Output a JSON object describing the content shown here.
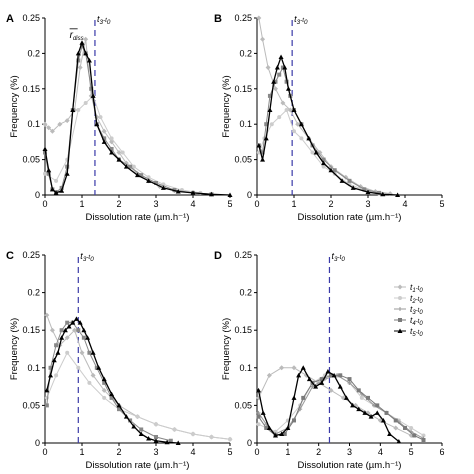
{
  "chart_data": [
    {
      "panel": "A",
      "type": "line",
      "xlabel": "Dissolution rate (µm.h⁻¹)",
      "ylabel": "Frequency (%)",
      "xlim": [
        0,
        5
      ],
      "ylim": [
        0,
        0.25
      ],
      "xticks": [
        0,
        1,
        2,
        3,
        4,
        5
      ],
      "yticks": [
        0,
        0.05,
        0.1,
        0.15,
        0.2,
        0.25
      ],
      "vline": {
        "x": 1.35,
        "label_pre": "t",
        "label_sub1": "3",
        "label_mid": "-t",
        "label_sub2": "0"
      },
      "annotation": {
        "x": 0.72,
        "y": 0.222,
        "text": "r",
        "sub": "diss"
      },
      "grid": false,
      "series": [
        {
          "color": "#bbbbbb",
          "marker": "diamond",
          "x": [
            0,
            0.1,
            0.2,
            0.4,
            0.6,
            0.8,
            0.95,
            1.1,
            1.25,
            1.4,
            1.6,
            1.8,
            2.0,
            2.2,
            2.5,
            2.8,
            3.1,
            3.5,
            4.0,
            4.5
          ],
          "y": [
            0.1,
            0.095,
            0.09,
            0.1,
            0.105,
            0.12,
            0.18,
            0.22,
            0.14,
            0.11,
            0.09,
            0.075,
            0.06,
            0.045,
            0.03,
            0.02,
            0.012,
            0.006,
            0.003,
            0.001
          ]
        },
        {
          "color": "#cccccc",
          "marker": "circle",
          "x": [
            0,
            0.3,
            0.6,
            0.9,
            1.1,
            1.3,
            1.5,
            1.8,
            2.1,
            2.4,
            2.8,
            3.2,
            3.7,
            4.2
          ],
          "y": [
            0.03,
            0.02,
            0.05,
            0.12,
            0.13,
            0.14,
            0.11,
            0.08,
            0.06,
            0.04,
            0.025,
            0.015,
            0.007,
            0.003
          ]
        },
        {
          "color": "#888888",
          "marker": "square",
          "x": [
            0,
            0.1,
            0.2,
            0.3,
            0.45,
            0.6,
            0.75,
            0.9,
            1.0,
            1.1,
            1.25,
            1.4,
            1.6,
            1.8,
            2.0,
            2.3,
            2.6,
            3.0,
            3.5,
            4.0,
            4.5
          ],
          "y": [
            0.06,
            0.03,
            0.008,
            0.004,
            0.01,
            0.04,
            0.12,
            0.19,
            0.21,
            0.2,
            0.15,
            0.1,
            0.08,
            0.065,
            0.05,
            0.04,
            0.028,
            0.017,
            0.007,
            0.003,
            0.001
          ]
        },
        {
          "color": "#000000",
          "marker": "triangle",
          "x": [
            0,
            0.1,
            0.2,
            0.3,
            0.45,
            0.6,
            0.75,
            0.9,
            1.0,
            1.1,
            1.2,
            1.3,
            1.4,
            1.6,
            1.8,
            2.0,
            2.2,
            2.5,
            2.8,
            3.2,
            3.6,
            4.0,
            4.5,
            5.0
          ],
          "y": [
            0.065,
            0.035,
            0.008,
            0.003,
            0.006,
            0.03,
            0.12,
            0.2,
            0.215,
            0.2,
            0.19,
            0.14,
            0.1,
            0.075,
            0.06,
            0.05,
            0.04,
            0.028,
            0.02,
            0.01,
            0.005,
            0.003,
            0.001,
            0.0
          ]
        }
      ]
    },
    {
      "panel": "B",
      "type": "line",
      "xlabel": "Dissolution rate (µm.h⁻¹)",
      "ylabel": "Frequency (%)",
      "xlim": [
        0,
        5
      ],
      "ylim": [
        0,
        0.25
      ],
      "xticks": [
        0,
        1,
        2,
        3,
        4,
        5
      ],
      "yticks": [
        0,
        0.05,
        0.1,
        0.15,
        0.2,
        0.25
      ],
      "vline": {
        "x": 0.95,
        "label_pre": "t",
        "label_sub1": "3",
        "label_mid": "-t",
        "label_sub2": "0"
      },
      "grid": false,
      "series": [
        {
          "color": "#bbbbbb",
          "marker": "diamond",
          "x": [
            0.05,
            0.15,
            0.3,
            0.5,
            0.7,
            0.9,
            1.1,
            1.4,
            1.7,
            2.0,
            2.4,
            2.8,
            3.2,
            3.6
          ],
          "y": [
            0.25,
            0.22,
            0.18,
            0.15,
            0.13,
            0.12,
            0.1,
            0.08,
            0.06,
            0.04,
            0.025,
            0.012,
            0.005,
            0.002
          ]
        },
        {
          "color": "#cccccc",
          "marker": "circle",
          "x": [
            0.05,
            0.2,
            0.4,
            0.6,
            0.8,
            1.0,
            1.2,
            1.5,
            1.8,
            2.1,
            2.5,
            2.9,
            3.3
          ],
          "y": [
            0.06,
            0.08,
            0.1,
            0.11,
            0.12,
            0.09,
            0.08,
            0.06,
            0.04,
            0.03,
            0.015,
            0.007,
            0.002
          ]
        },
        {
          "color": "#888888",
          "marker": "square",
          "x": [
            0.05,
            0.15,
            0.25,
            0.35,
            0.5,
            0.6,
            0.7,
            0.8,
            0.9,
            1.0,
            1.2,
            1.5,
            1.8,
            2.1,
            2.5,
            2.9,
            3.3
          ],
          "y": [
            0.07,
            0.06,
            0.1,
            0.14,
            0.16,
            0.17,
            0.18,
            0.16,
            0.14,
            0.12,
            0.1,
            0.07,
            0.05,
            0.035,
            0.02,
            0.008,
            0.003
          ]
        },
        {
          "color": "#000000",
          "marker": "triangle",
          "x": [
            0.05,
            0.15,
            0.25,
            0.35,
            0.45,
            0.55,
            0.65,
            0.75,
            0.85,
            1.0,
            1.2,
            1.4,
            1.6,
            1.8,
            2.0,
            2.3,
            2.6,
            3.0,
            3.4,
            3.8
          ],
          "y": [
            0.07,
            0.05,
            0.08,
            0.12,
            0.16,
            0.18,
            0.195,
            0.18,
            0.15,
            0.12,
            0.1,
            0.08,
            0.06,
            0.045,
            0.035,
            0.02,
            0.01,
            0.004,
            0.001,
            0.0
          ]
        }
      ]
    },
    {
      "panel": "C",
      "type": "line",
      "xlabel": "Dissolution rate (µm.h⁻¹)",
      "ylabel": "Frequency (%)",
      "xlim": [
        0,
        5
      ],
      "ylim": [
        0,
        0.25
      ],
      "xticks": [
        0,
        1,
        2,
        3,
        4,
        5
      ],
      "yticks": [
        0,
        0.05,
        0.1,
        0.15,
        0.2,
        0.25
      ],
      "vline": {
        "x": 0.9,
        "label_pre": "t",
        "label_sub1": "3",
        "label_mid": "-t",
        "label_sub2": "0"
      },
      "grid": false,
      "series": [
        {
          "color": "#bbbbbb",
          "marker": "diamond",
          "x": [
            0.05,
            0.2,
            0.4,
            0.6,
            0.8,
            1.0,
            1.3,
            1.6,
            2.0,
            2.5,
            3.0,
            3.5,
            4.0,
            4.5,
            5.0
          ],
          "y": [
            0.17,
            0.15,
            0.13,
            0.14,
            0.15,
            0.12,
            0.09,
            0.07,
            0.05,
            0.035,
            0.025,
            0.018,
            0.012,
            0.008,
            0.005
          ]
        },
        {
          "color": "#cccccc",
          "marker": "circle",
          "x": [
            0.05,
            0.3,
            0.6,
            0.9,
            1.2,
            1.6,
            2.0,
            2.5,
            3.0,
            3.5,
            4.0,
            4.5,
            5.0
          ],
          "y": [
            0.06,
            0.09,
            0.12,
            0.1,
            0.08,
            0.06,
            0.045,
            0.035,
            0.025,
            0.018,
            0.012,
            0.008,
            0.005
          ]
        },
        {
          "color": "#888888",
          "marker": "square",
          "x": [
            0.05,
            0.15,
            0.3,
            0.45,
            0.6,
            0.75,
            0.9,
            1.05,
            1.2,
            1.4,
            1.6,
            1.8,
            2.0,
            2.3,
            2.6,
            3.0,
            3.4
          ],
          "y": [
            0.05,
            0.1,
            0.13,
            0.15,
            0.16,
            0.16,
            0.15,
            0.14,
            0.12,
            0.1,
            0.08,
            0.06,
            0.045,
            0.03,
            0.018,
            0.008,
            0.003
          ]
        },
        {
          "color": "#000000",
          "marker": "triangle",
          "x": [
            0.05,
            0.15,
            0.25,
            0.35,
            0.45,
            0.55,
            0.65,
            0.75,
            0.85,
            0.95,
            1.05,
            1.15,
            1.3,
            1.45,
            1.6,
            1.8,
            2.0,
            2.2,
            2.4,
            2.6,
            2.8,
            3.0,
            3.3,
            3.6
          ],
          "y": [
            0.07,
            0.09,
            0.11,
            0.12,
            0.14,
            0.15,
            0.155,
            0.16,
            0.165,
            0.16,
            0.15,
            0.14,
            0.12,
            0.1,
            0.085,
            0.065,
            0.05,
            0.035,
            0.022,
            0.012,
            0.006,
            0.003,
            0.001,
            0.0
          ]
        }
      ]
    },
    {
      "panel": "D",
      "type": "line",
      "xlabel": "Dissolution rate (µm.h⁻¹)",
      "ylabel": "Frequency (%)",
      "xlim": [
        0,
        6
      ],
      "ylim": [
        0,
        0.25
      ],
      "xticks": [
        0,
        1,
        2,
        3,
        4,
        5,
        6
      ],
      "yticks": [
        0,
        0.05,
        0.1,
        0.15,
        0.2,
        0.25
      ],
      "vline": {
        "x": 2.35,
        "label_pre": "t",
        "label_sub1": "3",
        "label_mid": "-t",
        "label_sub2": "0"
      },
      "legend_position": "right",
      "grid": false,
      "series": [
        {
          "name_pre": "t",
          "name_sub1": "1",
          "name_mid": "-t",
          "name_sub2": "0",
          "color": "#bbbbbb",
          "marker": "diamond",
          "x": [
            0.05,
            0.4,
            0.8,
            1.2,
            1.6,
            2.0,
            2.4,
            2.8,
            3.2,
            3.6,
            4.0,
            4.5,
            5.0
          ],
          "y": [
            0.06,
            0.09,
            0.1,
            0.1,
            0.09,
            0.08,
            0.07,
            0.06,
            0.05,
            0.04,
            0.03,
            0.02,
            0.01
          ]
        },
        {
          "name_pre": "t",
          "name_sub1": "2",
          "name_mid": "-t",
          "name_sub2": "0",
          "color": "#cccccc",
          "marker": "circle",
          "x": [
            0.05,
            0.3,
            0.6,
            1.0,
            1.4,
            1.8,
            2.2,
            2.6,
            3.0,
            3.4,
            3.8,
            4.2,
            4.6,
            5.0,
            5.4
          ],
          "y": [
            0.025,
            0.02,
            0.015,
            0.03,
            0.05,
            0.08,
            0.09,
            0.09,
            0.08,
            0.06,
            0.05,
            0.04,
            0.03,
            0.02,
            0.01
          ]
        },
        {
          "name_pre": "t",
          "name_sub1": "3",
          "name_mid": "-t",
          "name_sub2": "0",
          "color": "#999999",
          "marker": "plus",
          "x": [
            0.05,
            0.3,
            0.6,
            1.0,
            1.4,
            1.8,
            2.2,
            2.6,
            3.0,
            3.4,
            3.8,
            4.2,
            4.6,
            5.0,
            5.4
          ],
          "y": [
            0.04,
            0.025,
            0.012,
            0.02,
            0.045,
            0.075,
            0.085,
            0.09,
            0.08,
            0.065,
            0.05,
            0.04,
            0.028,
            0.015,
            0.006
          ]
        },
        {
          "name_pre": "t",
          "name_sub1": "4",
          "name_mid": "-t",
          "name_sub2": "0",
          "color": "#7a7a7a",
          "marker": "square",
          "x": [
            0.05,
            0.3,
            0.6,
            0.9,
            1.2,
            1.5,
            1.8,
            2.1,
            2.4,
            2.7,
            3.0,
            3.3,
            3.6,
            3.9,
            4.2,
            4.5,
            4.8,
            5.1,
            5.4
          ],
          "y": [
            0.035,
            0.02,
            0.01,
            0.012,
            0.03,
            0.06,
            0.08,
            0.085,
            0.09,
            0.09,
            0.085,
            0.07,
            0.06,
            0.05,
            0.04,
            0.03,
            0.02,
            0.01,
            0.004
          ]
        },
        {
          "name_pre": "t",
          "name_sub1": "5",
          "name_mid": "-t",
          "name_sub2": "0",
          "color": "#000000",
          "marker": "triangle",
          "x": [
            0.05,
            0.2,
            0.4,
            0.6,
            0.8,
            1.0,
            1.2,
            1.35,
            1.5,
            1.7,
            1.9,
            2.1,
            2.3,
            2.5,
            2.7,
            2.9,
            3.1,
            3.3,
            3.5,
            3.7,
            3.9,
            4.1,
            4.3,
            4.6
          ],
          "y": [
            0.07,
            0.04,
            0.02,
            0.01,
            0.012,
            0.02,
            0.06,
            0.09,
            0.1,
            0.085,
            0.075,
            0.08,
            0.095,
            0.09,
            0.075,
            0.06,
            0.05,
            0.045,
            0.04,
            0.035,
            0.04,
            0.03,
            0.012,
            0.002
          ]
        }
      ]
    }
  ],
  "panel_labels": [
    "A",
    "B",
    "C",
    "D"
  ]
}
